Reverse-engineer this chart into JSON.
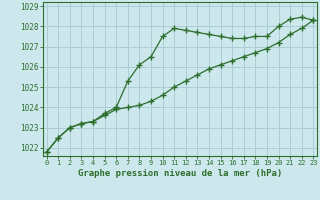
{
  "xlabel": "Graphe pression niveau de la mer (hPa)",
  "background_color": "#cce8ec",
  "grid_color": "#aacdd4",
  "line_color": "#2d6e2d",
  "x_ticks": [
    0,
    1,
    2,
    3,
    4,
    5,
    6,
    7,
    8,
    9,
    10,
    11,
    12,
    13,
    14,
    15,
    16,
    17,
    18,
    19,
    20,
    21,
    22,
    23
  ],
  "ylim": [
    1021.6,
    1029.2
  ],
  "xlim": [
    -0.3,
    23.3
  ],
  "yticks": [
    1022,
    1023,
    1024,
    1025,
    1026,
    1027,
    1028,
    1029
  ],
  "series1": [
    1021.8,
    1022.5,
    1023.0,
    1023.2,
    1023.3,
    1023.7,
    1024.0,
    1025.3,
    1026.1,
    1026.5,
    1027.5,
    1027.9,
    1027.8,
    1027.7,
    1027.6,
    1027.5,
    1027.4,
    1027.4,
    1027.5,
    1027.5,
    1028.0,
    1028.35,
    1028.45,
    1028.3
  ],
  "series2": [
    1021.8,
    1022.5,
    1023.0,
    1023.2,
    1023.3,
    1023.6,
    1023.9,
    1024.0,
    1024.1,
    1024.3,
    1024.6,
    1025.0,
    1025.3,
    1025.6,
    1025.9,
    1026.1,
    1026.3,
    1026.5,
    1026.7,
    1026.9,
    1027.2,
    1027.6,
    1027.9,
    1028.3
  ]
}
